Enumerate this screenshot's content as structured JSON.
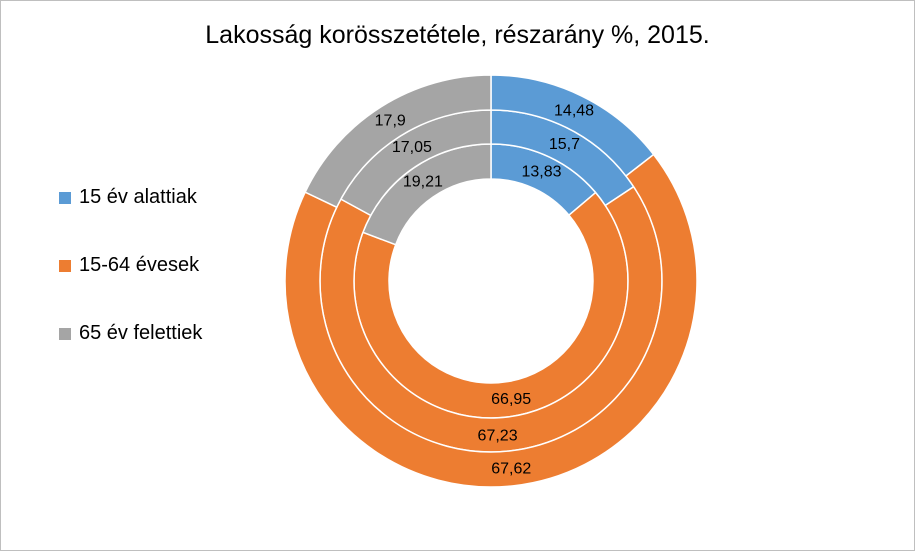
{
  "chart_data": {
    "type": "doughnut",
    "title": "Lakosság korösszetétele, részarány %, 2015.",
    "categories": [
      "15 év alattiak",
      "15-64 évesek",
      "65 év felettiek"
    ],
    "colors": [
      "#5B9BD5",
      "#ED7D31",
      "#A5A5A5"
    ],
    "legend_position": "left",
    "rings": [
      {
        "values": [
          13.83,
          66.95,
          19.21
        ],
        "labels": [
          "13,83",
          "66,95",
          "19,21"
        ]
      },
      {
        "values": [
          15.7,
          67.23,
          17.05
        ],
        "labels": [
          "15,7",
          "67,23",
          "17,05"
        ]
      },
      {
        "values": [
          14.48,
          67.62,
          17.9
        ],
        "labels": [
          "14,48",
          "67,62",
          "17,9"
        ]
      }
    ]
  }
}
